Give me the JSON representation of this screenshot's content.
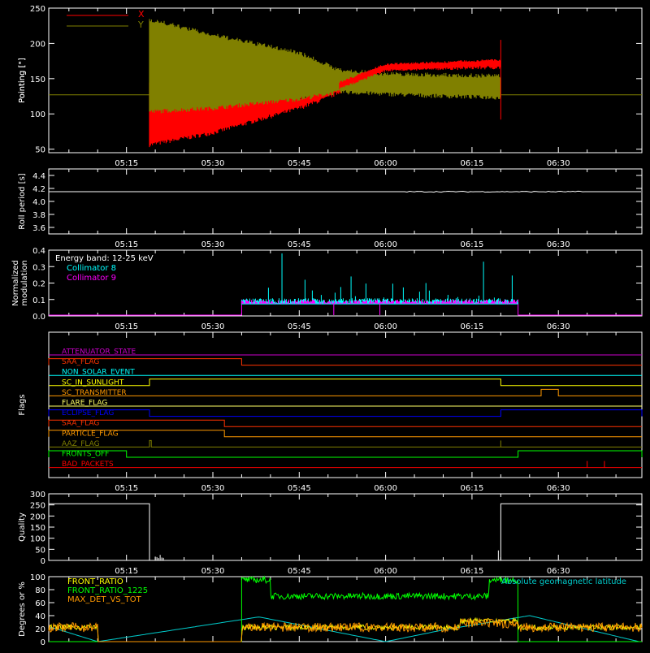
{
  "chart_data": [
    {
      "panel": "pointing",
      "type": "line",
      "ylabel": "Pointing [\"]",
      "ylim": [
        45,
        250
      ],
      "yticks": [
        "50",
        "100",
        "150",
        "200",
        "250"
      ],
      "xticks": [
        "05:15",
        "05:30",
        "05:45",
        "06:00",
        "06:15",
        "06:30"
      ],
      "legend": [
        {
          "label": "X",
          "color": "#ff0000"
        },
        {
          "label": "Y",
          "color": "#808000"
        }
      ],
      "baseline_value": 127,
      "active_interval": [
        "05:19",
        "06:20"
      ],
      "series": [
        {
          "name": "X",
          "color": "#ff0000",
          "envelope_time": [
            "05:19",
            "05:30",
            "05:45",
            "05:50",
            "06:00",
            "06:10",
            "06:20"
          ],
          "envelope_low": [
            53,
            70,
            105,
            120,
            160,
            162,
            163
          ],
          "envelope_high": [
            150,
            140,
            125,
            140,
            172,
            175,
            178
          ]
        },
        {
          "name": "Y",
          "color": "#808000",
          "envelope_time": [
            "05:19",
            "05:30",
            "05:45",
            "05:52",
            "06:00",
            "06:10",
            "06:20"
          ],
          "envelope_low": [
            100,
            105,
            118,
            128,
            125,
            122,
            120
          ],
          "envelope_high": [
            237,
            215,
            190,
            165,
            160,
            158,
            157
          ]
        }
      ]
    },
    {
      "panel": "roll",
      "type": "line",
      "ylabel": "Roll period [s]",
      "ylim": [
        3.5,
        4.5
      ],
      "yticks": [
        "3.6",
        "3.8",
        "4.0",
        "4.2",
        "4.4"
      ],
      "xticks": [
        "05:15",
        "05:30",
        "05:45",
        "06:00",
        "06:15",
        "06:30"
      ],
      "series": [
        {
          "color": "#ffffff",
          "value": 4.15
        }
      ]
    },
    {
      "panel": "modulation",
      "type": "line",
      "ylabel": "Normalized modulation",
      "ylim": [
        0,
        0.4
      ],
      "yticks": [
        "0.0",
        "0.1",
        "0.2",
        "0.3",
        "0.4"
      ],
      "xticks": [
        "05:15",
        "05:30",
        "05:45",
        "06:00",
        "06:15",
        "06:30"
      ],
      "annotation": "Energy band: 12-25 keV",
      "active_interval": [
        "05:35",
        "06:23"
      ],
      "series": [
        {
          "name": "Collimator 8",
          "color": "#00ffff",
          "typical": 0.09,
          "peaks": [
            0.38,
            0.33,
            0.3,
            0.25,
            0.2
          ]
        },
        {
          "name": "Collimator 9",
          "color": "#ff00ff",
          "typical": 0.085
        }
      ]
    },
    {
      "panel": "flags",
      "type": "line",
      "ylabel": "Flags",
      "xticks": [
        "05:15",
        "05:30",
        "05:45",
        "06:00",
        "06:15",
        "06:30"
      ],
      "series": [
        {
          "name": "ATTENUATOR_STATE",
          "color": "#cc00cc"
        },
        {
          "name": "SAA_FLAG",
          "color": "#ff3300"
        },
        {
          "name": "NON_SOLAR_EVENT",
          "color": "#00ffff"
        },
        {
          "name": "SC_IN_SUNLIGHT",
          "color": "#ffff00"
        },
        {
          "name": "SC_TRANSMITTER",
          "color": "#ff9900"
        },
        {
          "name": "FLARE_FLAG",
          "color": "#ffff66"
        },
        {
          "name": "ECLIPSE_FLAG",
          "color": "#0000ff"
        },
        {
          "name": "SAA_FLAG",
          "color": "#ff3300"
        },
        {
          "name": "PARTICLE_FLAG",
          "color": "#ff9900"
        },
        {
          "name": "AAZ_FLAG",
          "color": "#808000"
        },
        {
          "name": "FRONTS_OFF",
          "color": "#00ff00"
        },
        {
          "name": "BAD_PACKETS",
          "color": "#ff0000"
        }
      ]
    },
    {
      "panel": "quality",
      "type": "line",
      "ylabel": "Quality",
      "ylim": [
        0,
        300
      ],
      "yticks": [
        "0",
        "50",
        "100",
        "150",
        "200",
        "250",
        "300"
      ],
      "xticks": [
        "05:15",
        "05:30",
        "05:45",
        "06:00",
        "06:15",
        "06:30"
      ],
      "series": [
        {
          "color": "#ffffff",
          "intervals": [
            {
              "from": "start",
              "to": "05:19",
              "value": 255
            },
            {
              "from": "05:19",
              "to": "06:20",
              "value": 0
            },
            {
              "from": "06:20",
              "to": "end",
              "value": 255
            }
          ]
        }
      ]
    },
    {
      "panel": "ratios",
      "type": "line",
      "ylabel": "Degrees or %",
      "ylim": [
        0,
        100
      ],
      "yticks": [
        "0",
        "20",
        "40",
        "60",
        "80",
        "100"
      ],
      "annotation": "Absolute geomagnetic latitude",
      "series": [
        {
          "name": "FRONT_RATIO",
          "color": "#ffff00",
          "typical": 22
        },
        {
          "name": "FRONT_RATIO_1225",
          "color": "#00ff00",
          "typical": 70
        },
        {
          "name": "MAX_DET_VS_TOT",
          "color": "#ff9900",
          "typical": 22
        },
        {
          "name": "Absolute geomagnetic latitude",
          "color": "#00cccc"
        }
      ]
    }
  ]
}
